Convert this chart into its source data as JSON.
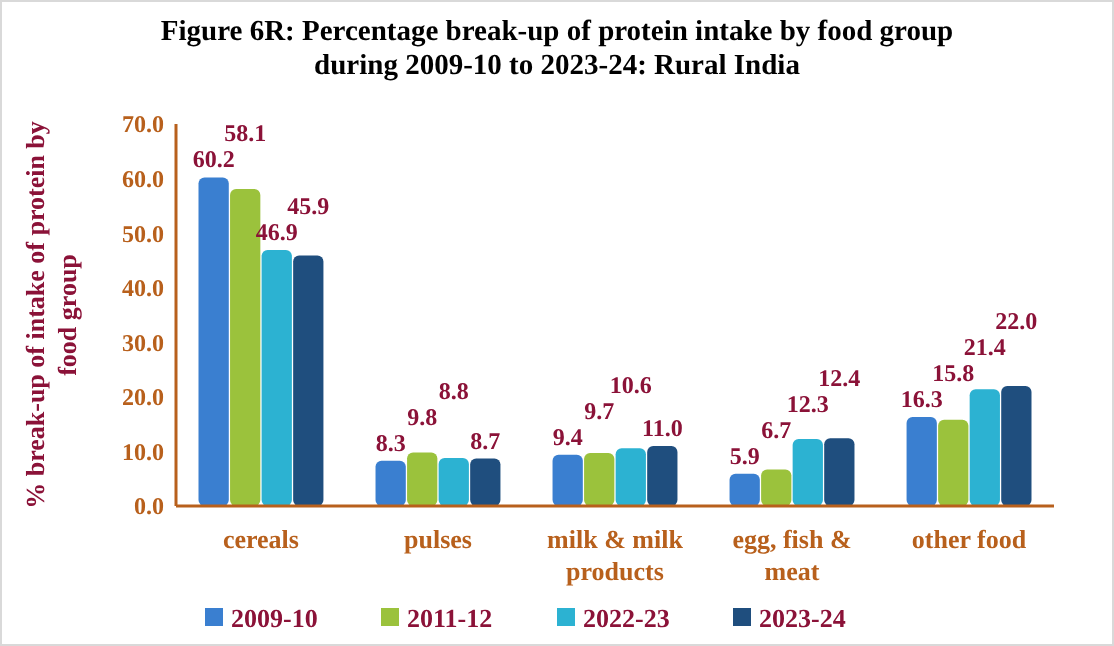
{
  "chart_data": {
    "type": "bar",
    "title": "Figure 6R: Percentage break-up of protein intake by food group during 2009-10 to 2023-24: Rural India",
    "ylabel": "% break-up of intake of protein by food group",
    "categories": [
      "cereals",
      "pulses",
      "milk & milk products",
      "egg, fish & meat",
      "other food"
    ],
    "series": [
      {
        "name": "2009-10",
        "color": "#3a7fd0",
        "values": [
          60.2,
          8.3,
          9.4,
          5.9,
          16.3
        ],
        "value_labels": [
          "60.2",
          "8.3",
          "9.4",
          "5.9",
          "16.3"
        ]
      },
      {
        "name": "2011-12",
        "color": "#9bc23c",
        "values": [
          58.1,
          9.8,
          9.7,
          6.7,
          15.8
        ],
        "value_labels": [
          "58.1",
          "9.8",
          "9.7",
          "6.7",
          "15.8"
        ]
      },
      {
        "name": "2022-23",
        "color": "#2cb2d2",
        "values": [
          46.9,
          8.8,
          10.6,
          12.3,
          21.4
        ],
        "value_labels": [
          "46.9",
          "8.8",
          "10.6",
          "12.3",
          "21.4"
        ]
      },
      {
        "name": "2023-24",
        "color": "#1f4e7e",
        "values": [
          45.9,
          8.7,
          11.0,
          12.4,
          22.0
        ],
        "value_labels": [
          "45.9",
          "8.7",
          "11.0",
          "12.4",
          "22.0"
        ]
      }
    ],
    "ylim": [
      0,
      70
    ],
    "yticks": [
      {
        "value": 0,
        "label": "0.0"
      },
      {
        "value": 10,
        "label": "10.0"
      },
      {
        "value": 20,
        "label": "20.0"
      },
      {
        "value": 30,
        "label": "30.0"
      },
      {
        "value": 40,
        "label": "40.0"
      },
      {
        "value": 50,
        "label": "50.0"
      },
      {
        "value": 60,
        "label": "60.0"
      },
      {
        "value": 70,
        "label": "70.0"
      }
    ],
    "grid": false,
    "legend": "bottom"
  }
}
